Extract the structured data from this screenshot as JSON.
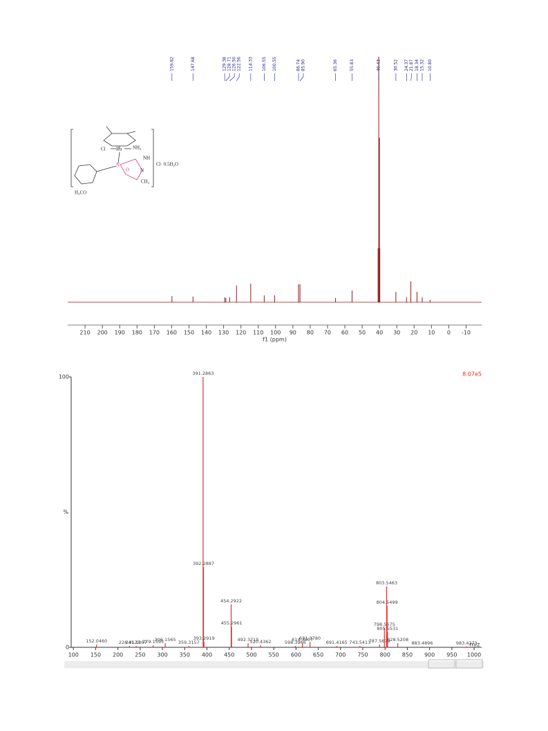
{
  "structure": {
    "labels": [
      "Cl",
      "Ru",
      "NH₂",
      "NH",
      "N",
      "O",
      "N",
      "CH₃",
      "H₃CO",
      "Cl· 0.5H₂O"
    ]
  },
  "chart_data": [
    {
      "type": "spectrum",
      "x_label": "f1 (ppm)",
      "x": [
        159.82,
        147.68,
        129.38,
        128.71,
        126.5,
        122.56,
        114.33,
        106.55,
        100.55,
        86.74,
        85.9,
        65.36,
        55.83,
        40.43,
        40.0,
        40.8,
        39.8,
        30.52,
        24.37,
        21.87,
        18.34,
        15.32,
        10.8
      ],
      "peak_labels": [
        "159.82",
        "147.68",
        "129.38",
        "128.71",
        "126.50",
        "122.56",
        "114.33",
        "106.55",
        "100.55",
        "86.74",
        "85.90",
        "65.36",
        "55.83",
        "40.43",
        null,
        null,
        null,
        "30.52",
        "24.37",
        "21.87",
        "18.34",
        "15.32",
        "10.80"
      ],
      "values": [
        2.5,
        2.3,
        2,
        1.7,
        2,
        6.8,
        7.6,
        2.8,
        2.8,
        7.3,
        7.3,
        1.7,
        4.8,
        100,
        67,
        22,
        22,
        4.2,
        2,
        8.5,
        4.2,
        2,
        1
      ],
      "color": "#8b1a1a",
      "label_color": "#1a1a8c",
      "xlim": [
        220,
        -19
      ],
      "ylim": [
        0,
        100
      ],
      "xticks": [
        210,
        200,
        190,
        180,
        170,
        160,
        150,
        140,
        130,
        120,
        110,
        100,
        90,
        80,
        70,
        60,
        50,
        40,
        30,
        20,
        10,
        0,
        -10
      ]
    },
    {
      "type": "stem",
      "x_label": "m/z",
      "y_label": "%",
      "annotation": "8.07e5",
      "x": [
        152.046,
        226.0123,
        241.1007,
        279.1595,
        306.1565,
        359.3157,
        391.2863,
        392.2887,
        393.2919,
        454.2922,
        455.2961,
        492.3715,
        520.4362,
        598.3966,
        614.3807,
        631.378,
        691.4165,
        743.5413,
        787.5679,
        798.5675,
        803.5463,
        804.5499,
        805.5531,
        828.5208,
        883.4896,
        983.4271
      ],
      "peak_labels": [
        "152.0460",
        "226.0123",
        "241.1007",
        "279.1595",
        "306.1565",
        "359.3157",
        "391.2863",
        "392.2887",
        "393.2919",
        "454.2922",
        "455.2961",
        "492.3715",
        "520.4362",
        "598.3966",
        "614.3807",
        "631.3780",
        "691.4165",
        "743.5413",
        "787.5679",
        "798.5675",
        "803.5463",
        "804.5499",
        "805.5531",
        "828.5208",
        "883.4896",
        "983.4271"
      ],
      "values": [
        1,
        0.5,
        0.5,
        0.8,
        1.5,
        0.5,
        100,
        29.7,
        2,
        15.9,
        7.7,
        1.5,
        0.8,
        0.5,
        1.5,
        2,
        0.5,
        0.5,
        1,
        7.2,
        22.5,
        15.3,
        5.6,
        1.5,
        0.3,
        0.3
      ],
      "color": "#e03030",
      "annotation_color": "#ff2020",
      "xlim": [
        95,
        1017
      ],
      "ylim": [
        0,
        100
      ],
      "xticks": [
        100,
        150,
        200,
        250,
        300,
        350,
        400,
        450,
        500,
        550,
        600,
        650,
        700,
        750,
        800,
        850,
        900,
        950,
        1000
      ],
      "yticks": [
        0,
        100
      ]
    }
  ]
}
